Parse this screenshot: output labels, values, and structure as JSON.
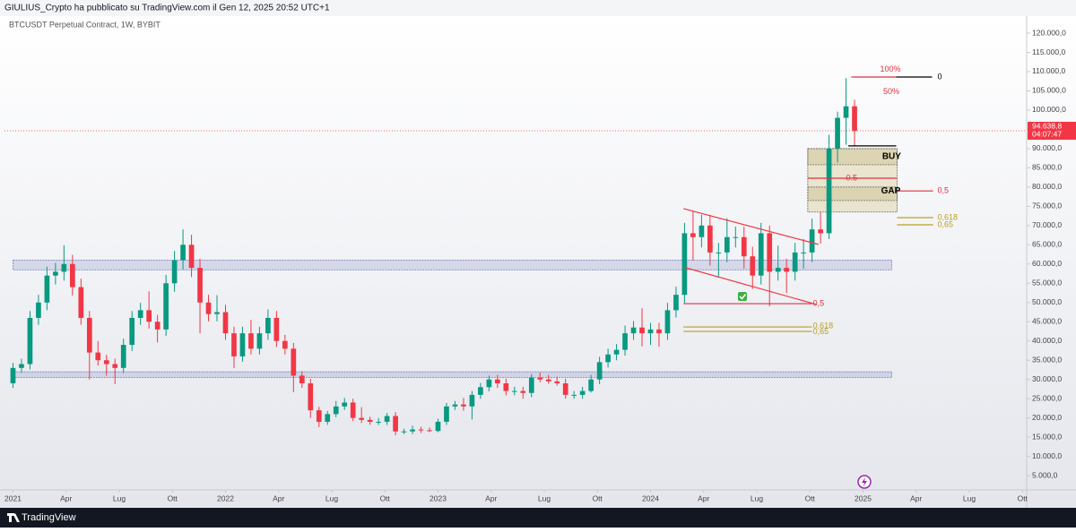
{
  "header": {
    "publisher": "GIULIUS_Crypto ha pubblicato su TradingView.com il Gen 12, 2025 20:52 UTC+1"
  },
  "footer": {
    "brand": "TradingView"
  },
  "chart_data": {
    "type": "candlestick",
    "title": "BTCUSDT Perpetual Contract, 1W, BYBIT",
    "up_color": "#089981",
    "down_color": "#f23645",
    "xlim": [
      2020.96,
      2025.77
    ],
    "ylim": [
      1300,
      122100
    ],
    "xticks": [
      2021,
      {
        "value": 2021.25,
        "label": "Apr"
      },
      {
        "value": 2021.5,
        "label": "Lug"
      },
      {
        "value": 2021.75,
        "label": "Ott"
      },
      2022,
      {
        "value": 2022.25,
        "label": "Apr"
      },
      {
        "value": 2022.5,
        "label": "Lug"
      },
      {
        "value": 2022.75,
        "label": "Ott"
      },
      2023,
      {
        "value": 2023.25,
        "label": "Apr"
      },
      {
        "value": 2023.5,
        "label": "Lug"
      },
      {
        "value": 2023.75,
        "label": "Ott"
      },
      2024,
      {
        "value": 2024.25,
        "label": "Apr"
      },
      {
        "value": 2024.5,
        "label": "Lug"
      },
      {
        "value": 2024.75,
        "label": "Ott"
      },
      2025,
      {
        "value": 2025.25,
        "label": "Apr"
      },
      {
        "value": 2025.5,
        "label": "Lug"
      },
      {
        "value": 2025.75,
        "label": "Ott"
      }
    ],
    "yticks": [
      {
        "value": 5000,
        "label": "5.000,0"
      },
      {
        "value": 10000,
        "label": "10.000,0"
      },
      {
        "value": 15000,
        "label": "15.000,0"
      },
      {
        "value": 20000,
        "label": "20.000,0"
      },
      {
        "value": 25000,
        "label": "25.000,0"
      },
      {
        "value": 30000,
        "label": "30.000,0"
      },
      {
        "value": 35000,
        "label": "35.000,0"
      },
      {
        "value": 40000,
        "label": "40.000,0"
      },
      {
        "value": 45000,
        "label": "45.000,0"
      },
      {
        "value": 50000,
        "label": "50.000,0"
      },
      {
        "value": 55000,
        "label": "55.000,0"
      },
      {
        "value": 60000,
        "label": "60.000,0"
      },
      {
        "value": 65000,
        "label": "65.000,0"
      },
      {
        "value": 70000,
        "label": "70.000,0"
      },
      {
        "value": 75000,
        "label": "75.000,0"
      },
      {
        "value": 80000,
        "label": "80.000,0"
      },
      {
        "value": 85000,
        "label": "85.000,0"
      },
      {
        "value": 90000,
        "label": "90.000,0"
      },
      {
        "value": 95000,
        "label": "95.000,0"
      },
      {
        "value": 100000,
        "label": "100.000,0"
      },
      {
        "value": 105000,
        "label": "105.000,0"
      },
      {
        "value": 110000,
        "label": "110.000,0"
      },
      {
        "value": 115000,
        "label": "115.000,0"
      },
      {
        "value": 120000,
        "label": "120.000,0"
      }
    ],
    "x": [
      2021,
      2021.04,
      2021.08,
      2021.12,
      2021.16,
      2021.2,
      2021.24,
      2021.28,
      2021.32,
      2021.36,
      2021.4,
      2021.44,
      2021.48,
      2021.52,
      2021.56,
      2021.6,
      2021.64,
      2021.68,
      2021.72,
      2021.76,
      2021.8,
      2021.84,
      2021.88,
      2021.92,
      2021.96,
      2022,
      2022.04,
      2022.08,
      2022.12,
      2022.16,
      2022.2,
      2022.24,
      2022.28,
      2022.32,
      2022.36,
      2022.4,
      2022.44,
      2022.48,
      2022.52,
      2022.56,
      2022.6,
      2022.64,
      2022.68,
      2022.72,
      2022.76,
      2022.8,
      2022.84,
      2022.88,
      2022.92,
      2022.96,
      2023,
      2023.04,
      2023.08,
      2023.12,
      2023.16,
      2023.2,
      2023.24,
      2023.28,
      2023.32,
      2023.36,
      2023.4,
      2023.44,
      2023.48,
      2023.52,
      2023.56,
      2023.6,
      2023.64,
      2023.68,
      2023.72,
      2023.76,
      2023.8,
      2023.84,
      2023.88,
      2023.92,
      2023.96,
      2024,
      2024.04,
      2024.08,
      2024.12,
      2024.16,
      2024.2,
      2024.24,
      2024.28,
      2024.32,
      2024.36,
      2024.4,
      2024.44,
      2024.48,
      2024.52,
      2024.56,
      2024.6,
      2024.64,
      2024.68,
      2024.72,
      2024.76,
      2024.8,
      2024.84,
      2024.88,
      2024.92,
      2024.96
    ],
    "open": [
      29000,
      33000,
      34000,
      46000,
      50000,
      57000,
      58000,
      60000,
      54000,
      46000,
      37000,
      35000,
      34000,
      33000,
      39000,
      46000,
      48000,
      45000,
      43000,
      55000,
      61000,
      65000,
      59000,
      50000,
      47000,
      47500,
      42000,
      36000,
      42000,
      38000,
      42000,
      46000,
      40000,
      38000,
      31000,
      29000,
      22000,
      19000,
      21000,
      23000,
      24000,
      20000,
      19500,
      19000,
      19000,
      20500,
      16500,
      16500,
      17000,
      16800,
      16600,
      19000,
      23000,
      23500,
      23000,
      26000,
      28000,
      30000,
      29000,
      27000,
      27000,
      26500,
      30500,
      30000,
      29500,
      29000,
      26000,
      26000,
      27000,
      30000,
      34500,
      36500,
      37700,
      42000,
      43500,
      42000,
      43000,
      42000,
      48000,
      52000,
      68000,
      67000,
      70000,
      63000,
      63000,
      67000,
      67000,
      62000,
      57000,
      68000,
      58000,
      59000,
      58000,
      63000,
      63000,
      69000,
      68000,
      90000,
      98000,
      101000
    ],
    "high": [
      34300,
      35400,
      47800,
      52000,
      59300,
      60300,
      64900,
      62400,
      56200,
      47800,
      40000,
      36400,
      35400,
      40600,
      47800,
      49900,
      52900,
      46800,
      57200,
      63400,
      69000,
      67600,
      61400,
      52000,
      51900,
      49400,
      43700,
      43700,
      45500,
      43700,
      48200,
      47800,
      41600,
      39500,
      32200,
      30200,
      22900,
      21800,
      24400,
      25200,
      25000,
      22800,
      20300,
      20000,
      21300,
      21500,
      17200,
      18000,
      17700,
      17500,
      19800,
      23900,
      24400,
      25200,
      27000,
      29100,
      31000,
      31200,
      30200,
      28100,
      28100,
      31400,
      31800,
      31200,
      30700,
      30200,
      27000,
      28100,
      31200,
      35900,
      38000,
      39200,
      44000,
      45200,
      48500,
      44700,
      44700,
      49900,
      54100,
      70700,
      73800,
      72800,
      72800,
      65500,
      71900,
      69700,
      69700,
      64500,
      70700,
      70000,
      64800,
      61400,
      65500,
      66500,
      71800,
      73600,
      93600,
      99600,
      108300,
      102700
    ],
    "low": [
      27800,
      31700,
      32600,
      44200,
      48000,
      54700,
      55700,
      51800,
      44200,
      30000,
      33600,
      31000,
      28800,
      31700,
      37400,
      44200,
      43200,
      39600,
      41300,
      52800,
      58600,
      56600,
      42000,
      45100,
      45100,
      40300,
      33000,
      34600,
      36500,
      36500,
      40300,
      38400,
      36500,
      26700,
      27800,
      20000,
      17600,
      18200,
      20200,
      22100,
      19200,
      18700,
      18200,
      18200,
      18200,
      15500,
      15800,
      15800,
      16100,
      16300,
      16300,
      18200,
      22100,
      21900,
      19600,
      25000,
      26900,
      27800,
      25900,
      25900,
      25000,
      25400,
      29300,
      28900,
      28400,
      25000,
      25000,
      25000,
      26600,
      28800,
      33100,
      35000,
      36200,
      40300,
      38600,
      39000,
      38500,
      40300,
      46100,
      49900,
      61000,
      64300,
      59600,
      56500,
      60500,
      64300,
      58800,
      53500,
      54700,
      49000,
      55700,
      52500,
      55700,
      58800,
      60500,
      65300,
      66500,
      86400,
      91000,
      90700
    ],
    "close": [
      33000,
      34000,
      46000,
      50000,
      57000,
      58000,
      60000,
      54000,
      46000,
      37000,
      35000,
      34000,
      33000,
      39000,
      46000,
      48000,
      45000,
      43000,
      55000,
      61000,
      65000,
      59000,
      50000,
      47000,
      47500,
      42000,
      36000,
      42000,
      38000,
      42000,
      46000,
      40000,
      38000,
      31000,
      29000,
      22000,
      19000,
      21000,
      23000,
      24000,
      20000,
      19500,
      19000,
      19000,
      20500,
      16500,
      16500,
      17000,
      16800,
      16600,
      19000,
      23000,
      23500,
      23000,
      26000,
      28000,
      30000,
      29000,
      27000,
      27000,
      26500,
      30500,
      30000,
      29500,
      29000,
      26000,
      26000,
      27000,
      30000,
      34500,
      36500,
      37700,
      42000,
      43500,
      42000,
      43000,
      42000,
      48000,
      52000,
      68000,
      67000,
      70000,
      63000,
      63000,
      67000,
      67000,
      62000,
      57000,
      68000,
      58000,
      59000,
      58000,
      63000,
      63000,
      69000,
      68000,
      90000,
      98000,
      101000,
      94600
    ],
    "last_price": {
      "value": 94638.8,
      "label": "94.638,8"
    },
    "last_time": "04:07:47",
    "last_color": "#f23645",
    "zones": [
      {
        "x": [
          2021,
          2025.135
        ],
        "y": [
          58500,
          61000
        ],
        "color": "rgba(90,100,180,0.18)",
        "stroke": "#6a74b8"
      },
      {
        "x": [
          2021,
          2025.135
        ],
        "y": [
          30500,
          32000
        ],
        "color": "rgba(90,100,180,0.18)",
        "stroke": "#6a74b8"
      },
      {
        "x": [
          2024.74,
          2025.16
        ],
        "y": [
          73500,
          90000
        ],
        "color": "rgba(205,190,110,0.30)",
        "stroke": "#555555"
      },
      {
        "x": [
          2024.74,
          2025.16
        ],
        "y": [
          85800,
          90000
        ],
        "color": "rgba(180,160,90,0.25)",
        "stroke": "#555555"
      },
      {
        "x": [
          2024.74,
          2025.16
        ],
        "y": [
          76500,
          80000
        ],
        "color": "rgba(180,160,90,0.25)",
        "stroke": "#555555"
      }
    ],
    "lines": [
      {
        "x": [
          2024.155,
          2024.79
        ],
        "y": [
          74400,
          65100
        ],
        "color": "#f23645"
      },
      {
        "x": [
          2024.155,
          2024.78
        ],
        "y": [
          59200,
          49500
        ],
        "color": "#f23645"
      },
      {
        "x": [
          2024.155,
          2024.76
        ],
        "y": [
          49700,
          49700
        ],
        "color": "#e0303f"
      },
      {
        "x": [
          2024.155,
          2024.76
        ],
        "y": [
          43650,
          43650
        ],
        "color": "#b8a020"
      },
      {
        "x": [
          2024.155,
          2024.76
        ],
        "y": [
          42480,
          42480
        ],
        "color": "#b8a020"
      },
      {
        "x": [
          2024.74,
          2025.16
        ],
        "y": [
          82300,
          82300
        ],
        "color": "#e0303f"
      },
      {
        "x": [
          2025.15,
          2025.33
        ],
        "y": [
          79000,
          79000
        ],
        "color": "#e0303f"
      },
      {
        "x": [
          2025.16,
          2025.33
        ],
        "y": [
          72050,
          72050
        ],
        "color": "#b8a020"
      },
      {
        "x": [
          2025.16,
          2025.33
        ],
        "y": [
          70200,
          70200
        ],
        "color": "#b8a020"
      },
      {
        "x": [
          2024.945,
          2025.156
        ],
        "y": [
          108600,
          108600
        ],
        "color": "#e0303f"
      },
      {
        "x": [
          2025.156,
          2025.325
        ],
        "y": [
          108600,
          108600
        ],
        "color": "#000000"
      },
      {
        "x": [
          2024.93,
          2025.156
        ],
        "y": [
          90700,
          90700
        ],
        "color": "#000000"
      }
    ],
    "annotations": [
      {
        "text": "100%",
        "x": 2025.08,
        "y": 110500,
        "color": "#e0303f"
      },
      {
        "text": "50%",
        "x": 2025.095,
        "y": 104700,
        "color": "#e0303f"
      },
      {
        "text": "0",
        "x": 2025.35,
        "y": 108600,
        "color": "#000000"
      },
      {
        "text": "BUY",
        "x": 2025.09,
        "y": 87900,
        "color": "#000000"
      },
      {
        "text": "0.5",
        "x": 2024.92,
        "y": 82300,
        "color": "#e0303f"
      },
      {
        "text": "GAP",
        "x": 2025.085,
        "y": 79000,
        "color": "#000000"
      },
      {
        "text": "0,5",
        "x": 2025.35,
        "y": 79000,
        "color": "#e0303f"
      },
      {
        "text": "0,618",
        "x": 2025.35,
        "y": 72050,
        "color": "#b8a020"
      },
      {
        "text": "0,65",
        "x": 2025.35,
        "y": 70200,
        "color": "#b8a020"
      },
      {
        "text": "0,5",
        "x": 2024.764,
        "y": 49700,
        "color": "#e0303f"
      },
      {
        "text": "0,618",
        "x": 2024.764,
        "y": 43900,
        "color": "#b8a020"
      },
      {
        "text": "0,65",
        "x": 2024.764,
        "y": 42300,
        "color": "#b8a020"
      }
    ]
  }
}
